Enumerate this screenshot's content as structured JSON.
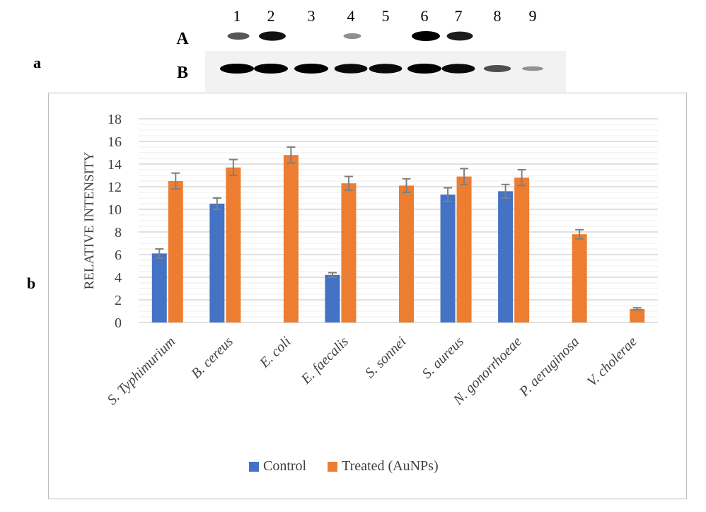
{
  "figure": {
    "panel_a_label": "a",
    "panel_b_label": "b"
  },
  "blot": {
    "lane_numbers": [
      "1",
      "2",
      "3",
      "4",
      "5",
      "6",
      "7",
      "8",
      "9"
    ],
    "row_labels": [
      "A",
      "B"
    ],
    "row_a_intensity": [
      0.55,
      0.9,
      0.0,
      0.25,
      0.0,
      1.0,
      0.85,
      0.0,
      0.0
    ],
    "row_b_intensity": [
      1.0,
      1.0,
      1.0,
      0.95,
      0.95,
      1.0,
      0.95,
      0.6,
      0.25
    ]
  },
  "colors": {
    "control": "#4472C4",
    "treated": "#ED7D31",
    "grid": "#d9d9d9",
    "error": "#7f7f7f",
    "text": "#404040"
  },
  "chart_data": {
    "type": "bar",
    "title": "",
    "xlabel": "",
    "ylabel": "RELATIVE INTENSITY",
    "ylim": [
      0,
      18
    ],
    "ytick_step": 2,
    "categories": [
      "S. Typhimurium",
      "B. cereus",
      "E. coli",
      "E. faecalis",
      "S. sonnei",
      "S. aureus",
      "N. gonorrhoeae",
      "P. aeruginosa",
      "V. cholerae"
    ],
    "series": [
      {
        "name": "Control",
        "values": [
          6.1,
          10.5,
          0,
          4.2,
          0,
          11.3,
          11.6,
          0,
          0
        ],
        "errors": [
          0.4,
          0.5,
          0,
          0.2,
          0,
          0.6,
          0.6,
          0,
          0
        ]
      },
      {
        "name": "Treated (AuNPs)",
        "values": [
          12.5,
          13.7,
          14.8,
          12.3,
          12.1,
          12.9,
          12.8,
          7.8,
          1.2
        ],
        "errors": [
          0.7,
          0.7,
          0.7,
          0.6,
          0.6,
          0.7,
          0.7,
          0.4,
          0.1
        ]
      }
    ],
    "legend": [
      "Control",
      "Treated (AuNPs)"
    ],
    "legend_position": "bottom"
  }
}
